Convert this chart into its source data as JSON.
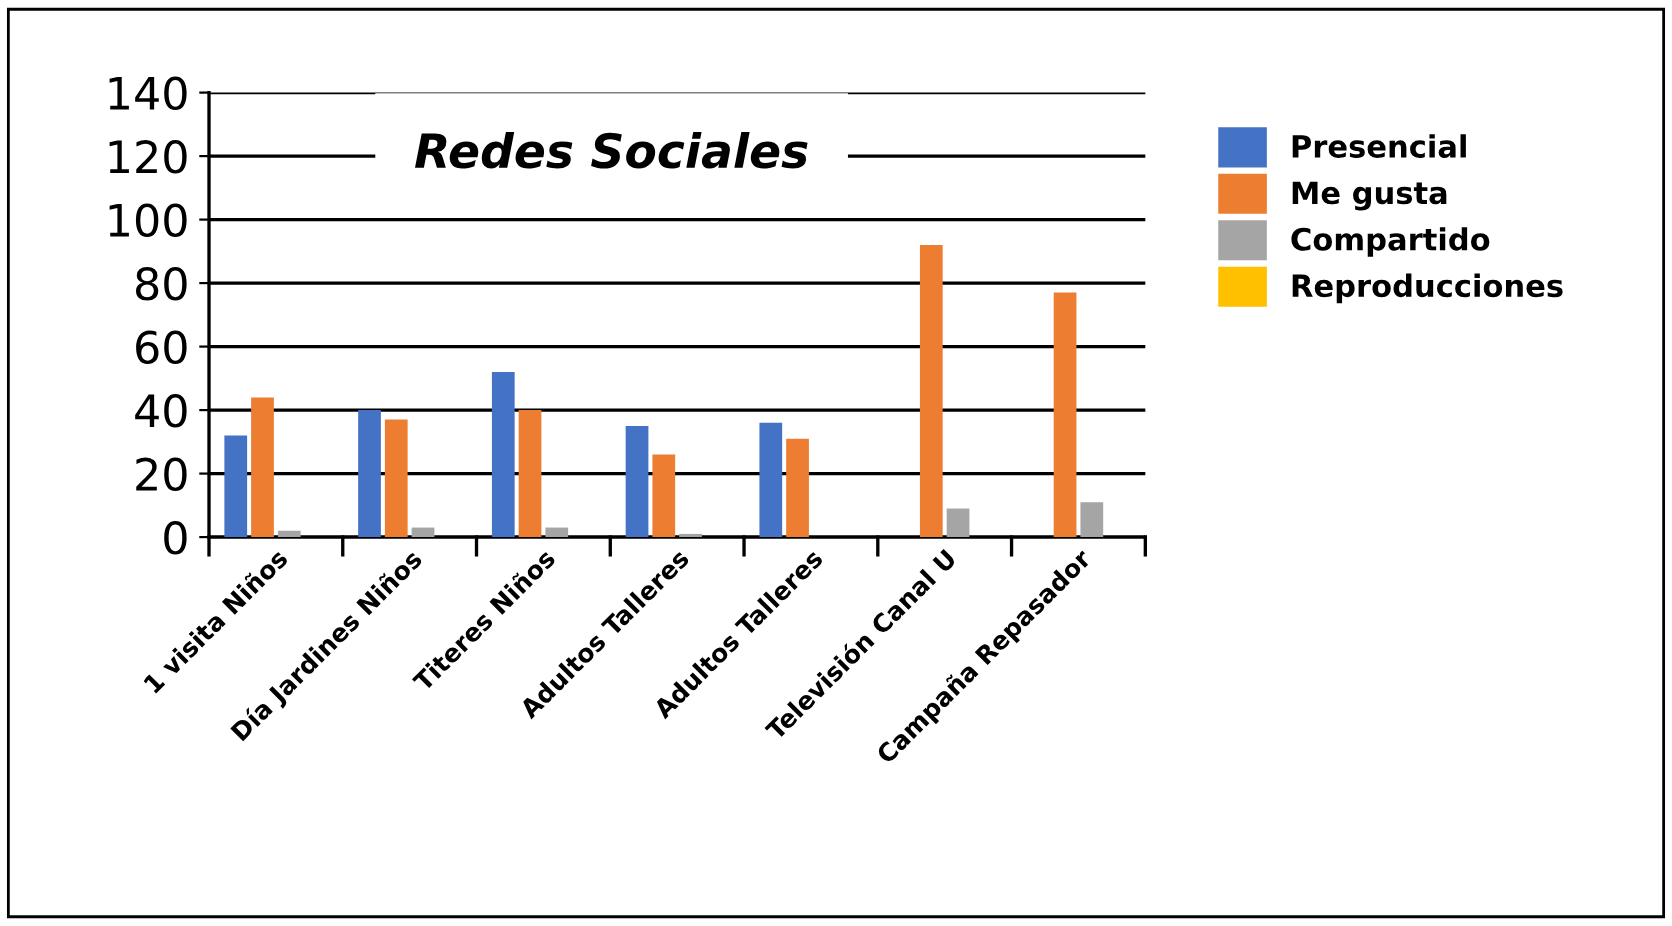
{
  "chart_data": {
    "type": "bar",
    "title": "Redes Sociales",
    "categories": [
      "1 visita Niños",
      "Día Jardines Niños",
      "Titeres Niños",
      "Adultos Talleres",
      "Adultos Talleres",
      "Televisión Canal U",
      "Campaña Repasador"
    ],
    "series": [
      {
        "name": "Presencial",
        "color": "#4472c4",
        "values": [
          32,
          40,
          52,
          35,
          36,
          0,
          0
        ]
      },
      {
        "name": "Me gusta",
        "color": "#ed7d31",
        "values": [
          44,
          37,
          40,
          26,
          31,
          92,
          77
        ]
      },
      {
        "name": "Compartido",
        "color": "#a5a5a5",
        "values": [
          2,
          3,
          3,
          1,
          0,
          9,
          11
        ]
      },
      {
        "name": "Reproducciones",
        "color": "#ffc000",
        "values": [
          0,
          0,
          0,
          0,
          0,
          0,
          0
        ]
      }
    ],
    "ylim": [
      0,
      140
    ],
    "yticks": [
      0,
      20,
      40,
      60,
      80,
      100,
      120,
      140
    ],
    "grid": "y",
    "legend": "right"
  }
}
